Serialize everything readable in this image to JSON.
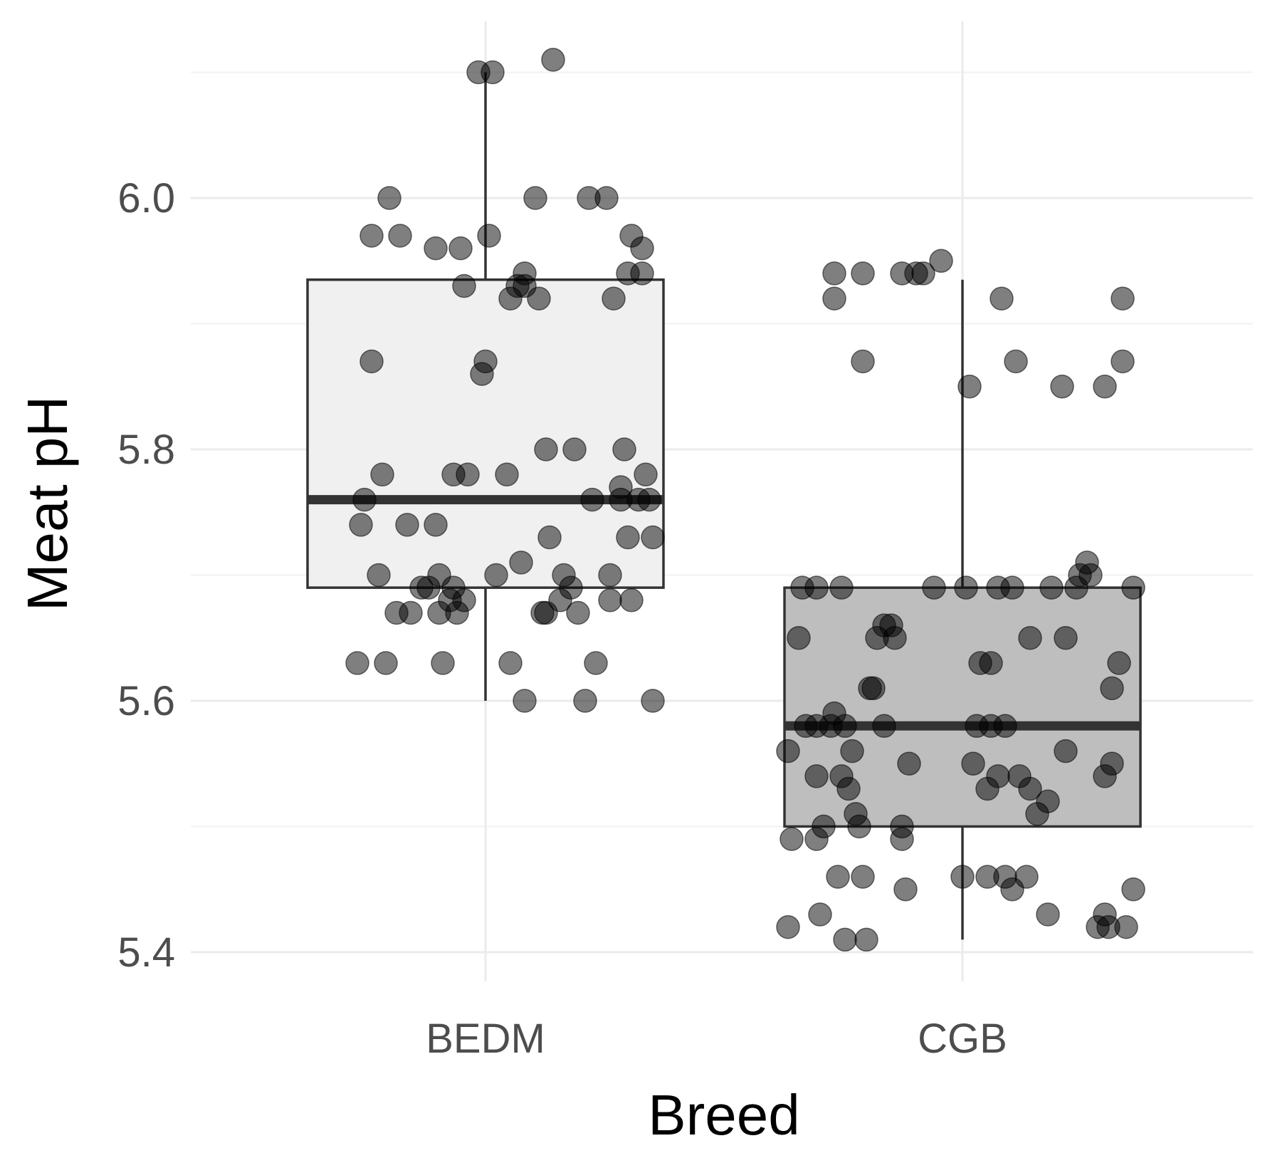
{
  "chart_data": {
    "type": "boxplot",
    "title": "",
    "xlabel": "Breed",
    "ylabel": "Meat pH",
    "ylim": [
      5.38,
      6.12
    ],
    "yticks": [
      5.4,
      5.6,
      5.8,
      6.0
    ],
    "ytick_labels": [
      "5.4",
      "5.6",
      "5.8",
      "6.0"
    ],
    "grid": true,
    "legend": "none",
    "categories": [
      "BEDM",
      "CGB"
    ],
    "boxes": [
      {
        "name": "BEDM",
        "fill": "#f0f0f0",
        "whisker_low": 5.6,
        "q1": 5.69,
        "median": 5.76,
        "q3": 5.935,
        "whisker_high": 6.1,
        "points": [
          [
            -0.18,
            5.63
          ],
          [
            -0.175,
            5.74
          ],
          [
            -0.17,
            5.76
          ],
          [
            -0.16,
            5.87
          ],
          [
            -0.16,
            5.97
          ],
          [
            -0.15,
            5.7
          ],
          [
            -0.145,
            5.78
          ],
          [
            -0.14,
            5.63
          ],
          [
            -0.135,
            6.0
          ],
          [
            -0.125,
            5.67
          ],
          [
            -0.12,
            5.97
          ],
          [
            -0.11,
            5.74
          ],
          [
            -0.105,
            5.67
          ],
          [
            -0.09,
            5.69
          ],
          [
            -0.08,
            5.69
          ],
          [
            -0.07,
            5.96
          ],
          [
            -0.07,
            5.74
          ],
          [
            -0.065,
            5.67
          ],
          [
            -0.065,
            5.7
          ],
          [
            -0.06,
            5.63
          ],
          [
            -0.05,
            5.68
          ],
          [
            -0.045,
            5.69
          ],
          [
            -0.045,
            5.78
          ],
          [
            -0.04,
            5.67
          ],
          [
            -0.035,
            5.96
          ],
          [
            -0.03,
            5.93
          ],
          [
            -0.03,
            5.68
          ],
          [
            -0.025,
            5.78
          ],
          [
            -0.01,
            6.1
          ],
          [
            -0.005,
            5.86
          ],
          [
            0.0,
            5.87
          ],
          [
            0.005,
            5.97
          ],
          [
            0.01,
            6.1
          ],
          [
            0.015,
            5.7
          ],
          [
            0.03,
            5.78
          ],
          [
            0.035,
            5.63
          ],
          [
            0.035,
            5.92
          ],
          [
            0.045,
            5.93
          ],
          [
            0.05,
            5.71
          ],
          [
            0.055,
            5.94
          ],
          [
            0.055,
            5.6
          ],
          [
            0.055,
            5.93
          ],
          [
            0.07,
            6.0
          ],
          [
            0.075,
            5.92
          ],
          [
            0.08,
            5.67
          ],
          [
            0.085,
            5.8
          ],
          [
            0.085,
            5.67
          ],
          [
            0.09,
            5.73
          ],
          [
            0.095,
            6.11
          ],
          [
            0.105,
            5.68
          ],
          [
            0.11,
            5.7
          ],
          [
            0.12,
            5.69
          ],
          [
            0.125,
            5.8
          ],
          [
            0.13,
            5.67
          ],
          [
            0.14,
            5.6
          ],
          [
            0.145,
            6.0
          ],
          [
            0.15,
            5.76
          ],
          [
            0.155,
            5.63
          ],
          [
            0.17,
            6.0
          ],
          [
            0.175,
            5.7
          ],
          [
            0.175,
            5.68
          ],
          [
            0.18,
            5.92
          ],
          [
            0.19,
            5.77
          ],
          [
            0.19,
            5.76
          ],
          [
            0.195,
            5.8
          ],
          [
            0.2,
            5.73
          ],
          [
            0.2,
            5.94
          ],
          [
            0.205,
            5.97
          ],
          [
            0.205,
            5.68
          ],
          [
            0.215,
            5.76
          ],
          [
            0.22,
            5.96
          ],
          [
            0.22,
            5.94
          ],
          [
            0.225,
            5.78
          ],
          [
            0.23,
            5.76
          ],
          [
            0.235,
            5.73
          ],
          [
            0.235,
            5.6
          ]
        ]
      },
      {
        "name": "CGB",
        "fill": "#bebebe",
        "whisker_low": 5.41,
        "q1": 5.5,
        "median": 5.58,
        "q3": 5.69,
        "whisker_high": 5.935,
        "points": [
          [
            -0.245,
            5.42
          ],
          [
            -0.245,
            5.56
          ],
          [
            -0.24,
            5.49
          ],
          [
            -0.23,
            5.65
          ],
          [
            -0.225,
            5.69
          ],
          [
            -0.22,
            5.58
          ],
          [
            -0.205,
            5.69
          ],
          [
            -0.205,
            5.58
          ],
          [
            -0.205,
            5.54
          ],
          [
            -0.205,
            5.49
          ],
          [
            -0.2,
            5.43
          ],
          [
            -0.195,
            5.5
          ],
          [
            -0.185,
            5.58
          ],
          [
            -0.18,
            5.59
          ],
          [
            -0.18,
            5.94
          ],
          [
            -0.18,
            5.92
          ],
          [
            -0.175,
            5.46
          ],
          [
            -0.17,
            5.54
          ],
          [
            -0.17,
            5.69
          ],
          [
            -0.165,
            5.41
          ],
          [
            -0.165,
            5.58
          ],
          [
            -0.16,
            5.53
          ],
          [
            -0.155,
            5.56
          ],
          [
            -0.15,
            5.51
          ],
          [
            -0.145,
            5.5
          ],
          [
            -0.14,
            5.94
          ],
          [
            -0.14,
            5.46
          ],
          [
            -0.14,
            5.87
          ],
          [
            -0.135,
            5.41
          ],
          [
            -0.13,
            5.61
          ],
          [
            -0.125,
            5.61
          ],
          [
            -0.12,
            5.65
          ],
          [
            -0.11,
            5.66
          ],
          [
            -0.11,
            5.58
          ],
          [
            -0.1,
            5.66
          ],
          [
            -0.095,
            5.65
          ],
          [
            -0.085,
            5.94
          ],
          [
            -0.085,
            5.5
          ],
          [
            -0.085,
            5.49
          ],
          [
            -0.08,
            5.45
          ],
          [
            -0.075,
            5.55
          ],
          [
            -0.065,
            5.94
          ],
          [
            -0.055,
            5.94
          ],
          [
            -0.04,
            5.69
          ],
          [
            -0.03,
            5.95
          ],
          [
            0.0,
            5.46
          ],
          [
            0.005,
            5.69
          ],
          [
            0.01,
            5.85
          ],
          [
            0.015,
            5.55
          ],
          [
            0.02,
            5.58
          ],
          [
            0.025,
            5.63
          ],
          [
            0.035,
            5.46
          ],
          [
            0.035,
            5.53
          ],
          [
            0.04,
            5.58
          ],
          [
            0.04,
            5.63
          ],
          [
            0.05,
            5.54
          ],
          [
            0.05,
            5.69
          ],
          [
            0.055,
            5.92
          ],
          [
            0.06,
            5.58
          ],
          [
            0.06,
            5.46
          ],
          [
            0.07,
            5.69
          ],
          [
            0.07,
            5.45
          ],
          [
            0.075,
            5.87
          ],
          [
            0.08,
            5.54
          ],
          [
            0.09,
            5.46
          ],
          [
            0.095,
            5.53
          ],
          [
            0.095,
            5.65
          ],
          [
            0.105,
            5.51
          ],
          [
            0.12,
            5.43
          ],
          [
            0.12,
            5.52
          ],
          [
            0.125,
            5.69
          ],
          [
            0.14,
            5.85
          ],
          [
            0.145,
            5.56
          ],
          [
            0.145,
            5.65
          ],
          [
            0.16,
            5.69
          ],
          [
            0.165,
            5.7
          ],
          [
            0.175,
            5.71
          ],
          [
            0.18,
            5.7
          ],
          [
            0.19,
            5.42
          ],
          [
            0.2,
            5.43
          ],
          [
            0.2,
            5.85
          ],
          [
            0.205,
            5.42
          ],
          [
            0.2,
            5.54
          ],
          [
            0.21,
            5.61
          ],
          [
            0.21,
            5.55
          ],
          [
            0.22,
            5.63
          ],
          [
            0.225,
            5.87
          ],
          [
            0.225,
            5.92
          ],
          [
            0.23,
            5.42
          ],
          [
            0.24,
            5.69
          ],
          [
            0.24,
            5.45
          ]
        ]
      }
    ]
  }
}
